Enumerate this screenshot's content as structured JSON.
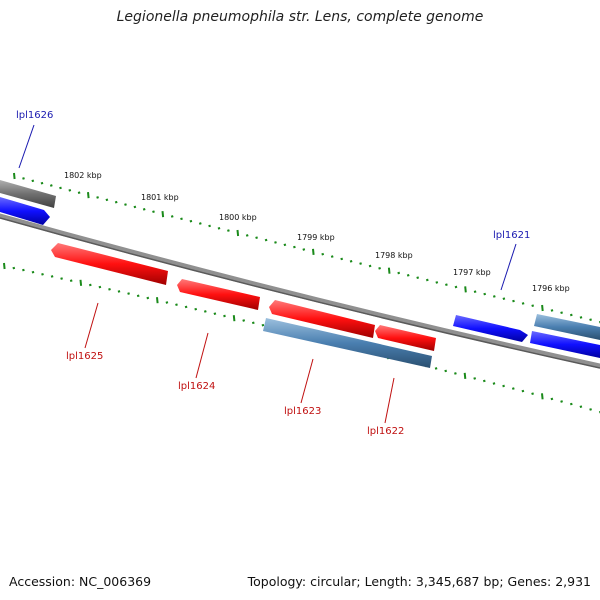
{
  "title": "Legionella pneumophila str. Lens, complete genome",
  "footer": {
    "accession": "Accession: NC_006369",
    "summary": "Topology: circular; Length: 3,345,687 bp; Genes: 2,931"
  },
  "scale": {
    "unit": "kbp",
    "labels": [
      "1802 kbp",
      "1801 kbp",
      "1800 kbp",
      "1799 kbp",
      "1798 kbp",
      "1797 kbp",
      "1796 kbp"
    ]
  },
  "genes": {
    "forward_labels": [
      "lpl1626",
      "lpl1621"
    ],
    "reverse_labels": [
      "lpl1625",
      "lpl1624",
      "lpl1623",
      "lpl1622"
    ]
  },
  "colors": {
    "forward_gene": "#1a1aff",
    "reverse_gene": "#ff1a1a",
    "other_gene": "#4a7fb0",
    "backbone": "#808080",
    "tick": "#1a8a1a",
    "forward_label": "#1a1ab0",
    "reverse_label": "#c01010"
  }
}
